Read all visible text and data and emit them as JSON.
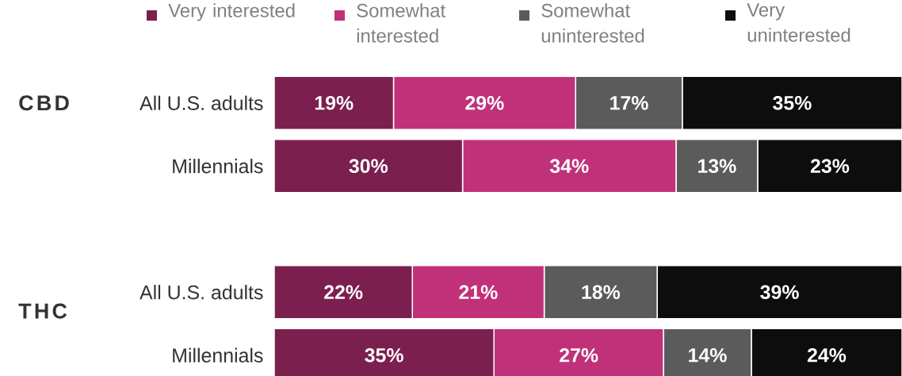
{
  "chart_data": {
    "type": "bar",
    "orientation": "horizontal",
    "stacked": true,
    "categories": [
      "All U.S. adults",
      "Millennials",
      null,
      "All U.S. adults",
      "Millennials"
    ],
    "xlim": [
      0,
      100
    ],
    "tick_labels": "y",
    "legend": "top",
    "series": [
      {
        "name": "Very interested",
        "color": "#7b1f4e",
        "values": [
          19,
          30,
          null,
          22,
          35
        ],
        "value_labels": [
          "19%",
          "30%",
          null,
          "22%",
          "35%"
        ]
      },
      {
        "name": "Somewhat interested",
        "color": "#c0317a",
        "values": [
          29,
          34,
          null,
          21,
          27
        ],
        "value_labels": [
          "29%",
          "34%",
          null,
          "21%",
          "27%"
        ]
      },
      {
        "name": "Somewhat uninterested",
        "color": "#5b5b5b",
        "values": [
          17,
          13,
          null,
          18,
          14
        ],
        "value_labels": [
          "17%",
          "13%",
          null,
          "18%",
          "14%"
        ]
      },
      {
        "name": "Very uninterested",
        "color": "#0d0d0d",
        "values": [
          35,
          23,
          null,
          39,
          24
        ],
        "value_labels": [
          "35%",
          "23%",
          null,
          "39%",
          "24%"
        ]
      }
    ],
    "annotations": [
      "CBD",
      "THC"
    ]
  }
}
